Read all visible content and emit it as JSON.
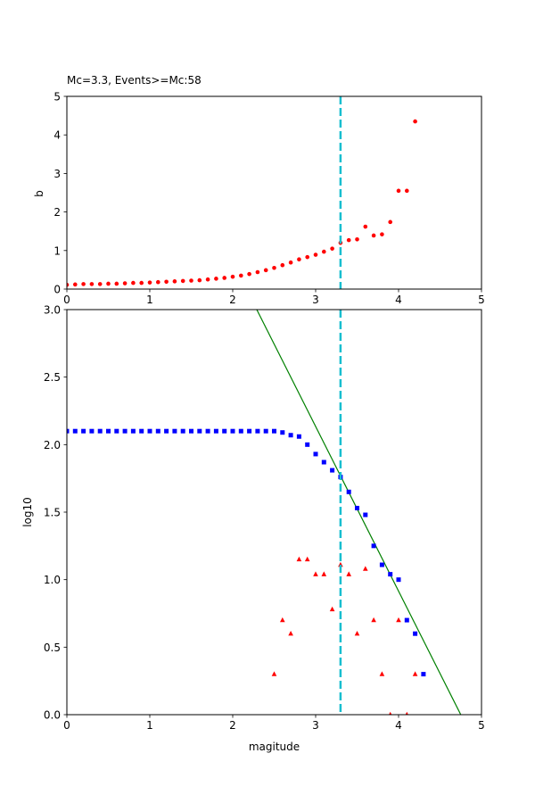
{
  "chart_data": [
    {
      "type": "scatter",
      "title": "Mc=3.3, Events>=Mc:58",
      "xlabel": "",
      "ylabel": "b",
      "xlim": [
        0,
        5
      ],
      "ylim": [
        0,
        5
      ],
      "xticks": [
        "0",
        "1",
        "2",
        "3",
        "4",
        "5"
      ],
      "yticks": [
        "0",
        "1",
        "2",
        "3",
        "4",
        "5"
      ],
      "grid": false,
      "colors": {
        "points": "#ff0000",
        "mc_line": "#17becf"
      },
      "mc_line_x": 3.3,
      "series": [
        {
          "marker": "circle",
          "x": [
            0.0,
            0.1,
            0.2,
            0.3,
            0.4,
            0.5,
            0.6,
            0.7,
            0.8,
            0.9,
            1.0,
            1.1,
            1.2,
            1.3,
            1.4,
            1.5,
            1.6,
            1.7,
            1.8,
            1.9,
            2.0,
            2.1,
            2.2,
            2.3,
            2.4,
            2.5,
            2.6,
            2.7,
            2.8,
            2.9,
            3.0,
            3.1,
            3.2,
            3.3,
            3.4,
            3.5,
            3.6,
            3.7,
            3.8,
            3.9,
            4.0,
            4.1,
            4.2
          ],
          "y": [
            0.11,
            0.12,
            0.13,
            0.13,
            0.13,
            0.14,
            0.14,
            0.15,
            0.16,
            0.16,
            0.17,
            0.18,
            0.19,
            0.2,
            0.21,
            0.22,
            0.23,
            0.25,
            0.27,
            0.29,
            0.32,
            0.35,
            0.39,
            0.44,
            0.49,
            0.55,
            0.62,
            0.69,
            0.77,
            0.83,
            0.89,
            0.97,
            1.05,
            1.2,
            1.27,
            1.29,
            1.62,
            1.39,
            1.42,
            1.74,
            2.55,
            2.55,
            4.35
          ]
        }
      ]
    },
    {
      "type": "scatter",
      "title": "",
      "xlabel": "magitude",
      "ylabel": "log10",
      "xlim": [
        0,
        5
      ],
      "ylim": [
        0,
        3
      ],
      "xticks": [
        "0",
        "1",
        "2",
        "3",
        "4",
        "5"
      ],
      "yticks": [
        "0.0",
        "0.5",
        "1.0",
        "1.5",
        "2.0",
        "2.5",
        "3.0"
      ],
      "grid": false,
      "colors": {
        "cumulative": "#0000ff",
        "noncumulative": "#ff0000",
        "fit": "#008000",
        "mc_line": "#17becf"
      },
      "mc_line_x": 3.3,
      "fit_line": {
        "x": [
          2.29,
          4.75
        ],
        "y": [
          3.0,
          0.0
        ]
      },
      "series": [
        {
          "marker": "square",
          "x": [
            0.0,
            0.1,
            0.2,
            0.3,
            0.4,
            0.5,
            0.6,
            0.7,
            0.8,
            0.9,
            1.0,
            1.1,
            1.2,
            1.3,
            1.4,
            1.5,
            1.6,
            1.7,
            1.8,
            1.9,
            2.0,
            2.1,
            2.2,
            2.3,
            2.4,
            2.5,
            2.6,
            2.7,
            2.8,
            2.9,
            3.0,
            3.1,
            3.2,
            3.3,
            3.4,
            3.5,
            3.6,
            3.7,
            3.8,
            3.9,
            4.0,
            4.1,
            4.2,
            4.3
          ],
          "y": [
            2.1,
            2.1,
            2.1,
            2.1,
            2.1,
            2.1,
            2.1,
            2.1,
            2.1,
            2.1,
            2.1,
            2.1,
            2.1,
            2.1,
            2.1,
            2.1,
            2.1,
            2.1,
            2.1,
            2.1,
            2.1,
            2.1,
            2.1,
            2.1,
            2.1,
            2.1,
            2.09,
            2.07,
            2.06,
            2.0,
            1.93,
            1.87,
            1.81,
            1.76,
            1.65,
            1.53,
            1.48,
            1.25,
            1.11,
            1.04,
            1.0,
            0.7,
            0.6,
            0.3
          ]
        },
        {
          "marker": "triangle",
          "x": [
            2.5,
            2.6,
            2.7,
            2.8,
            2.9,
            3.0,
            3.1,
            3.2,
            3.3,
            3.4,
            3.5,
            3.6,
            3.7,
            3.8,
            3.9,
            4.0,
            4.1,
            4.2
          ],
          "y": [
            0.3,
            0.7,
            0.6,
            1.15,
            1.15,
            1.04,
            1.04,
            0.78,
            1.11,
            1.04,
            0.6,
            1.08,
            0.7,
            0.3,
            0.0,
            0.7,
            0.0,
            0.3
          ]
        }
      ]
    }
  ]
}
